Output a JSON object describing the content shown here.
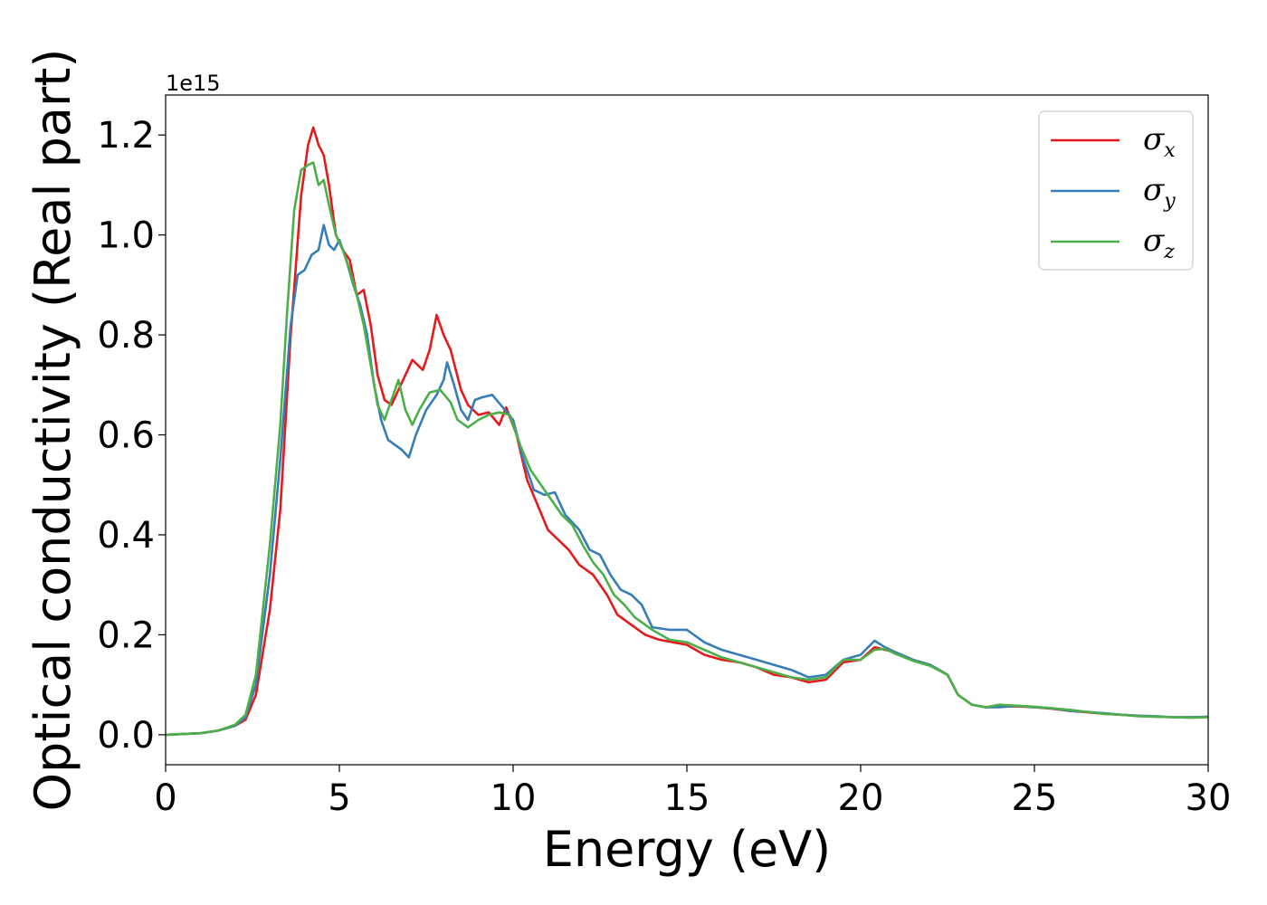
{
  "chart_data": {
    "type": "line",
    "title": "",
    "xlabel": "Energy (eV)",
    "ylabel": "Optical conductivity (Real part)",
    "y_offset_label": "1e15",
    "xlim": [
      0,
      30
    ],
    "ylim": [
      -0.06,
      1.28
    ],
    "x_ticks": [
      0,
      5,
      10,
      15,
      20,
      25,
      30
    ],
    "x_tick_labels": [
      "0",
      "5",
      "10",
      "15",
      "20",
      "25",
      "30"
    ],
    "y_ticks": [
      0.0,
      0.2,
      0.4,
      0.6,
      0.8,
      1.0,
      1.2
    ],
    "y_tick_labels": [
      "0.0",
      "0.2",
      "0.4",
      "0.6",
      "0.8",
      "1.0",
      "1.2"
    ],
    "grid": false,
    "legend_position": "top-right",
    "series": [
      {
        "name": "σx",
        "legend_symbol": "σ",
        "legend_sub": "x",
        "color": "#e41a1c",
        "points": [
          [
            0,
            0
          ],
          [
            1,
            0.003
          ],
          [
            1.5,
            0.008
          ],
          [
            2,
            0.018
          ],
          [
            2.3,
            0.03
          ],
          [
            2.6,
            0.08
          ],
          [
            3,
            0.25
          ],
          [
            3.3,
            0.45
          ],
          [
            3.6,
            0.8
          ],
          [
            3.9,
            1.08
          ],
          [
            4.1,
            1.18
          ],
          [
            4.25,
            1.215
          ],
          [
            4.4,
            1.18
          ],
          [
            4.55,
            1.16
          ],
          [
            4.7,
            1.1
          ],
          [
            4.9,
            1.0
          ],
          [
            5.1,
            0.97
          ],
          [
            5.3,
            0.95
          ],
          [
            5.5,
            0.88
          ],
          [
            5.7,
            0.89
          ],
          [
            5.9,
            0.82
          ],
          [
            6.1,
            0.72
          ],
          [
            6.3,
            0.67
          ],
          [
            6.5,
            0.66
          ],
          [
            6.7,
            0.69
          ],
          [
            6.9,
            0.72
          ],
          [
            7.1,
            0.75
          ],
          [
            7.4,
            0.73
          ],
          [
            7.6,
            0.77
          ],
          [
            7.8,
            0.84
          ],
          [
            8.0,
            0.8
          ],
          [
            8.2,
            0.77
          ],
          [
            8.5,
            0.69
          ],
          [
            8.7,
            0.66
          ],
          [
            9.0,
            0.64
          ],
          [
            9.3,
            0.645
          ],
          [
            9.6,
            0.62
          ],
          [
            9.8,
            0.655
          ],
          [
            10.1,
            0.6
          ],
          [
            10.4,
            0.51
          ],
          [
            10.7,
            0.46
          ],
          [
            11,
            0.41
          ],
          [
            11.3,
            0.39
          ],
          [
            11.6,
            0.37
          ],
          [
            11.9,
            0.34
          ],
          [
            12.3,
            0.32
          ],
          [
            12.7,
            0.28
          ],
          [
            13.0,
            0.24
          ],
          [
            13.4,
            0.22
          ],
          [
            13.8,
            0.2
          ],
          [
            14.2,
            0.19
          ],
          [
            14.6,
            0.185
          ],
          [
            15,
            0.18
          ],
          [
            15.5,
            0.16
          ],
          [
            16,
            0.15
          ],
          [
            16.5,
            0.145
          ],
          [
            17,
            0.135
          ],
          [
            17.5,
            0.12
          ],
          [
            18,
            0.115
          ],
          [
            18.5,
            0.105
          ],
          [
            19,
            0.11
          ],
          [
            19.5,
            0.145
          ],
          [
            20,
            0.15
          ],
          [
            20.4,
            0.175
          ],
          [
            20.7,
            0.17
          ],
          [
            21,
            0.165
          ],
          [
            21.5,
            0.15
          ],
          [
            22,
            0.14
          ],
          [
            22.5,
            0.12
          ],
          [
            22.8,
            0.08
          ],
          [
            23.2,
            0.06
          ],
          [
            23.6,
            0.055
          ],
          [
            24,
            0.056
          ],
          [
            24.5,
            0.057
          ],
          [
            25,
            0.055
          ],
          [
            25.5,
            0.052
          ],
          [
            26,
            0.048
          ],
          [
            26.5,
            0.045
          ],
          [
            27,
            0.042
          ],
          [
            27.5,
            0.04
          ],
          [
            28,
            0.038
          ],
          [
            28.5,
            0.036
          ],
          [
            29,
            0.035
          ],
          [
            29.5,
            0.035
          ],
          [
            30,
            0.036
          ]
        ]
      },
      {
        "name": "σy",
        "legend_symbol": "σ",
        "legend_sub": "y",
        "color": "#377eb8",
        "points": [
          [
            0,
            0
          ],
          [
            1,
            0.003
          ],
          [
            1.5,
            0.008
          ],
          [
            2,
            0.018
          ],
          [
            2.3,
            0.035
          ],
          [
            2.6,
            0.1
          ],
          [
            3,
            0.32
          ],
          [
            3.3,
            0.55
          ],
          [
            3.6,
            0.82
          ],
          [
            3.8,
            0.92
          ],
          [
            4.0,
            0.93
          ],
          [
            4.2,
            0.96
          ],
          [
            4.4,
            0.97
          ],
          [
            4.55,
            1.02
          ],
          [
            4.7,
            0.98
          ],
          [
            4.85,
            0.97
          ],
          [
            5.0,
            0.99
          ],
          [
            5.2,
            0.95
          ],
          [
            5.4,
            0.9
          ],
          [
            5.6,
            0.86
          ],
          [
            5.8,
            0.8
          ],
          [
            6.0,
            0.7
          ],
          [
            6.2,
            0.63
          ],
          [
            6.4,
            0.59
          ],
          [
            6.6,
            0.58
          ],
          [
            6.8,
            0.57
          ],
          [
            7.0,
            0.555
          ],
          [
            7.2,
            0.6
          ],
          [
            7.5,
            0.65
          ],
          [
            7.8,
            0.68
          ],
          [
            8.0,
            0.71
          ],
          [
            8.1,
            0.745
          ],
          [
            8.3,
            0.7
          ],
          [
            8.5,
            0.65
          ],
          [
            8.7,
            0.63
          ],
          [
            8.9,
            0.67
          ],
          [
            9.1,
            0.675
          ],
          [
            9.4,
            0.68
          ],
          [
            9.7,
            0.655
          ],
          [
            10.0,
            0.63
          ],
          [
            10.3,
            0.55
          ],
          [
            10.6,
            0.49
          ],
          [
            10.9,
            0.48
          ],
          [
            11.2,
            0.485
          ],
          [
            11.5,
            0.44
          ],
          [
            11.9,
            0.41
          ],
          [
            12.2,
            0.37
          ],
          [
            12.5,
            0.36
          ],
          [
            12.8,
            0.32
          ],
          [
            13.1,
            0.29
          ],
          [
            13.4,
            0.28
          ],
          [
            13.7,
            0.26
          ],
          [
            14,
            0.215
          ],
          [
            14.5,
            0.21
          ],
          [
            15,
            0.21
          ],
          [
            15.5,
            0.185
          ],
          [
            16,
            0.17
          ],
          [
            16.5,
            0.16
          ],
          [
            17,
            0.15
          ],
          [
            17.5,
            0.14
          ],
          [
            18,
            0.13
          ],
          [
            18.5,
            0.115
          ],
          [
            19,
            0.12
          ],
          [
            19.5,
            0.15
          ],
          [
            20,
            0.16
          ],
          [
            20.4,
            0.188
          ],
          [
            20.7,
            0.175
          ],
          [
            21,
            0.165
          ],
          [
            21.5,
            0.15
          ],
          [
            22,
            0.14
          ],
          [
            22.5,
            0.12
          ],
          [
            22.8,
            0.08
          ],
          [
            23.2,
            0.06
          ],
          [
            23.6,
            0.055
          ],
          [
            24,
            0.055
          ],
          [
            24.5,
            0.058
          ],
          [
            25,
            0.055
          ],
          [
            25.5,
            0.053
          ],
          [
            26,
            0.048
          ],
          [
            26.5,
            0.046
          ],
          [
            27,
            0.043
          ],
          [
            27.5,
            0.04
          ],
          [
            28,
            0.038
          ],
          [
            28.5,
            0.037
          ],
          [
            29,
            0.035
          ],
          [
            29.5,
            0.035
          ],
          [
            30,
            0.036
          ]
        ]
      },
      {
        "name": "σz",
        "legend_symbol": "σ",
        "legend_sub": "z",
        "color": "#4daf4a",
        "points": [
          [
            0,
            0
          ],
          [
            1,
            0.003
          ],
          [
            1.5,
            0.008
          ],
          [
            2,
            0.02
          ],
          [
            2.3,
            0.04
          ],
          [
            2.6,
            0.12
          ],
          [
            3,
            0.38
          ],
          [
            3.3,
            0.62
          ],
          [
            3.5,
            0.85
          ],
          [
            3.7,
            1.05
          ],
          [
            3.9,
            1.13
          ],
          [
            4.1,
            1.14
          ],
          [
            4.25,
            1.145
          ],
          [
            4.4,
            1.1
          ],
          [
            4.55,
            1.11
          ],
          [
            4.7,
            1.06
          ],
          [
            4.9,
            1.0
          ],
          [
            5.1,
            0.97
          ],
          [
            5.3,
            0.93
          ],
          [
            5.5,
            0.88
          ],
          [
            5.7,
            0.82
          ],
          [
            5.9,
            0.74
          ],
          [
            6.1,
            0.66
          ],
          [
            6.3,
            0.63
          ],
          [
            6.5,
            0.67
          ],
          [
            6.7,
            0.71
          ],
          [
            6.9,
            0.65
          ],
          [
            7.1,
            0.62
          ],
          [
            7.3,
            0.65
          ],
          [
            7.6,
            0.685
          ],
          [
            7.9,
            0.69
          ],
          [
            8.2,
            0.665
          ],
          [
            8.4,
            0.63
          ],
          [
            8.7,
            0.615
          ],
          [
            9.0,
            0.63
          ],
          [
            9.3,
            0.64
          ],
          [
            9.6,
            0.645
          ],
          [
            9.9,
            0.64
          ],
          [
            10.2,
            0.58
          ],
          [
            10.5,
            0.53
          ],
          [
            10.8,
            0.5
          ],
          [
            11.1,
            0.47
          ],
          [
            11.4,
            0.44
          ],
          [
            11.7,
            0.42
          ],
          [
            12.0,
            0.38
          ],
          [
            12.3,
            0.345
          ],
          [
            12.6,
            0.32
          ],
          [
            12.9,
            0.28
          ],
          [
            13.2,
            0.26
          ],
          [
            13.5,
            0.235
          ],
          [
            14,
            0.21
          ],
          [
            14.5,
            0.19
          ],
          [
            15,
            0.185
          ],
          [
            15.5,
            0.17
          ],
          [
            16,
            0.155
          ],
          [
            16.5,
            0.145
          ],
          [
            17,
            0.135
          ],
          [
            17.5,
            0.125
          ],
          [
            18,
            0.115
          ],
          [
            18.5,
            0.11
          ],
          [
            19,
            0.115
          ],
          [
            19.5,
            0.15
          ],
          [
            20,
            0.15
          ],
          [
            20.4,
            0.17
          ],
          [
            20.7,
            0.172
          ],
          [
            21,
            0.162
          ],
          [
            21.5,
            0.148
          ],
          [
            22,
            0.138
          ],
          [
            22.5,
            0.12
          ],
          [
            22.8,
            0.08
          ],
          [
            23.2,
            0.06
          ],
          [
            23.6,
            0.055
          ],
          [
            24,
            0.06
          ],
          [
            24.5,
            0.058
          ],
          [
            25,
            0.056
          ],
          [
            25.5,
            0.053
          ],
          [
            26,
            0.05
          ],
          [
            26.5,
            0.046
          ],
          [
            27,
            0.042
          ],
          [
            27.5,
            0.04
          ],
          [
            28,
            0.037
          ],
          [
            28.5,
            0.036
          ],
          [
            29,
            0.035
          ],
          [
            29.5,
            0.034
          ],
          [
            30,
            0.035
          ]
        ]
      }
    ]
  }
}
